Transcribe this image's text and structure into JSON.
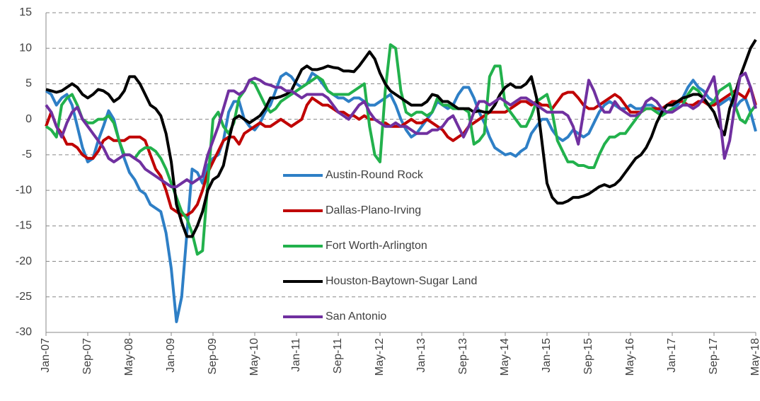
{
  "chart_data": {
    "type": "line",
    "categories": [
      "Jan-07",
      null,
      null,
      null,
      null,
      null,
      null,
      null,
      "Sep-07",
      null,
      null,
      null,
      null,
      null,
      null,
      null,
      "May-08",
      null,
      null,
      null,
      null,
      null,
      null,
      null,
      "Jan-09",
      null,
      null,
      null,
      null,
      null,
      null,
      null,
      "Sep-09",
      null,
      null,
      null,
      null,
      null,
      null,
      null,
      "May-10",
      null,
      null,
      null,
      null,
      null,
      null,
      null,
      "Jan-11",
      null,
      null,
      null,
      null,
      null,
      null,
      null,
      "Sep-11",
      null,
      null,
      null,
      null,
      null,
      null,
      null,
      "May-12",
      null,
      null,
      null,
      null,
      null,
      null,
      null,
      "Jan-13",
      null,
      null,
      null,
      null,
      null,
      null,
      null,
      "Sep-13",
      null,
      null,
      null,
      null,
      null,
      null,
      null,
      "May-14",
      null,
      null,
      null,
      null,
      null,
      null,
      null,
      "Jan-15",
      null,
      null,
      null,
      null,
      null,
      null,
      null,
      "Sep-15",
      null,
      null,
      null,
      null,
      null,
      null,
      null,
      "May-16",
      null,
      null,
      null,
      null,
      null,
      null,
      null,
      "Jan-17",
      null,
      null,
      null,
      null,
      null,
      null,
      null,
      "Sep-17",
      null,
      null,
      null,
      null,
      null,
      null,
      null,
      "May-18"
    ],
    "series": [
      {
        "name": "Austin-Round Rock",
        "color": "#2e7fc6",
        "values": [
          4,
          3.5,
          2,
          3,
          3.5,
          2,
          -1,
          -4,
          -6,
          -5.5,
          -3,
          -1,
          1.2,
          0,
          -3,
          -5.5,
          -7.5,
          -8.5,
          -10,
          -10.5,
          -12,
          -12.5,
          -13,
          -16,
          -21,
          -28.5,
          -25,
          -16,
          -7,
          -7.5,
          -9,
          -6.5,
          -5.5,
          -5,
          -3,
          1,
          2.5,
          2.5,
          0,
          -1,
          -1.5,
          -0.5,
          1,
          2,
          4,
          6,
          6.5,
          6,
          5,
          4.5,
          5,
          6.5,
          6,
          5,
          4,
          3.5,
          3,
          3,
          2.5,
          3,
          3,
          2.5,
          2,
          2,
          2.5,
          3,
          3.5,
          2,
          0,
          -1.5,
          -2.5,
          -2,
          -1,
          0,
          1,
          2.5,
          2,
          1.5,
          2,
          3.5,
          4.5,
          4.5,
          3,
          1,
          -0.5,
          -2.5,
          -4,
          -4.5,
          -5,
          -4.8,
          -5.2,
          -4.5,
          -4,
          -2,
          -1,
          0,
          0,
          -1.5,
          -2.5,
          -3,
          -2.5,
          -1.5,
          -2,
          -2.5,
          -2,
          -0.5,
          1,
          2,
          2.5,
          2,
          1.5,
          1.5,
          2,
          1.5,
          1.5,
          2,
          2,
          1.5,
          1,
          1,
          1.5,
          2,
          3,
          4.5,
          5.5,
          4.5,
          4,
          3,
          2.5,
          2,
          2.5,
          3,
          1.5,
          2.5,
          3,
          1,
          -1.7
        ]
      },
      {
        "name": "Dallas-Plano-Irving",
        "color": "#c00000",
        "values": [
          -1,
          1,
          -1,
          -2,
          -3.5,
          -3.5,
          -4,
          -5,
          -5.5,
          -5.5,
          -4.5,
          -3,
          -2.5,
          -3,
          -3,
          -3,
          -2.5,
          -2.5,
          -2.5,
          -3,
          -5,
          -7,
          -8,
          -10,
          -12.5,
          -13,
          -13.5,
          -13.5,
          -13,
          -12,
          -10,
          -7.5,
          -6,
          -4.5,
          -3,
          -2.5,
          -2.5,
          -3.5,
          -2,
          -1.5,
          -1,
          -0.5,
          -1,
          -1,
          -0.5,
          0,
          -0.5,
          -1,
          -0.5,
          0,
          2,
          3,
          2.5,
          2,
          2,
          1.5,
          1,
          1,
          0.5,
          0.5,
          0,
          0.5,
          0,
          0,
          -0.5,
          -0.5,
          -1,
          -1,
          -1,
          -0.5,
          0,
          -0.5,
          -0.5,
          0,
          -0.5,
          -1,
          -1.5,
          -2.5,
          -3,
          -2.5,
          -2,
          -1,
          -0.5,
          0,
          0.5,
          1,
          1,
          1,
          1,
          1.5,
          2,
          2.5,
          2.5,
          2,
          2.5,
          2,
          2,
          1.5,
          2.5,
          3.5,
          3.8,
          3.8,
          3,
          2,
          1.5,
          1.5,
          2,
          2.5,
          3,
          3.5,
          3,
          2,
          1,
          1,
          1,
          1.5,
          1.5,
          1.5,
          1.5,
          2,
          2.5,
          2.5,
          2.5,
          2,
          2,
          2.5,
          2.5,
          2,
          2,
          2.5,
          3,
          3.5,
          4,
          3.5,
          3,
          4.5,
          2
        ]
      },
      {
        "name": "Fort Worth-Arlington",
        "color": "#22b14c",
        "values": [
          -1,
          -1.5,
          -2.5,
          2,
          3,
          3.5,
          2,
          0,
          -0.5,
          -0.5,
          0,
          0,
          0.5,
          -0.5,
          -3,
          -5,
          -5,
          -5.5,
          -4.5,
          -4,
          -4,
          -4.5,
          -5.5,
          -7,
          -9,
          -11,
          -13,
          -14,
          -16,
          -19,
          -18.5,
          -9,
          0,
          1,
          -1,
          -2,
          -0.5,
          3,
          4,
          5.5,
          5,
          3.5,
          2,
          1,
          1.5,
          2.5,
          3,
          3.5,
          4,
          4.5,
          5,
          5.5,
          6,
          5.5,
          4,
          3.5,
          3.5,
          3.5,
          3.5,
          4,
          4.5,
          5,
          -1,
          -5,
          -6,
          4,
          10.5,
          10,
          4,
          1,
          0.5,
          1,
          1,
          0.5,
          1,
          3,
          2,
          2,
          1.5,
          1.5,
          1.5,
          1,
          -3.5,
          -3,
          -2,
          6,
          7.5,
          7.5,
          2,
          1,
          0,
          -1,
          -1,
          0.5,
          2.5,
          3,
          3.5,
          1,
          -3,
          -4.5,
          -6,
          -6,
          -6.5,
          -6.5,
          -6.8,
          -6.8,
          -5,
          -3.5,
          -2.5,
          -2.5,
          -2,
          -2,
          -1,
          0,
          1,
          1.5,
          1.5,
          1,
          0.5,
          1,
          1.5,
          1.5,
          2,
          3.5,
          4.5,
          4,
          3,
          2,
          2.5,
          4,
          4.5,
          5,
          2,
          0,
          -0.5,
          1,
          2
        ]
      },
      {
        "name": "Houston-Baytown-Sugar Land",
        "color": "#000000",
        "values": [
          4.2,
          4,
          3.8,
          4,
          4.5,
          5,
          4.5,
          3.5,
          3,
          3.5,
          4.2,
          4,
          3.5,
          2.5,
          3,
          4,
          6,
          6,
          5,
          3.5,
          2,
          1.5,
          0.5,
          -2,
          -6,
          -12,
          -14.5,
          -16.5,
          -16.5,
          -15,
          -13,
          -10,
          -8.5,
          -8,
          -6.5,
          -3,
          0,
          0.5,
          0,
          -0.5,
          0,
          0.5,
          1.5,
          3,
          3,
          3.2,
          3.5,
          4,
          5.5,
          7,
          7.5,
          7,
          7,
          7.2,
          7.5,
          7.3,
          7.2,
          6.8,
          6.8,
          6.7,
          7.5,
          8.5,
          9.5,
          8.5,
          6.5,
          5,
          4,
          3.5,
          3,
          2.5,
          2,
          2,
          2,
          2.5,
          3.5,
          3.3,
          2.5,
          2.5,
          2,
          1.5,
          1.5,
          1.5,
          1,
          1.2,
          1,
          1,
          2,
          3.5,
          4.5,
          5,
          4.5,
          4.5,
          5,
          6,
          3,
          -3,
          -9,
          -11,
          -11.8,
          -11.8,
          -11.5,
          -11,
          -11,
          -10.8,
          -10.5,
          -10,
          -9.5,
          -9.2,
          -9.5,
          -9.2,
          -8.5,
          -7.5,
          -6.5,
          -5.5,
          -5,
          -4,
          -2.5,
          -0.5,
          1,
          2,
          2,
          2.5,
          3,
          3.2,
          3.5,
          3.5,
          3,
          2,
          1,
          -1,
          -2.2,
          1.5,
          3.5,
          6,
          8,
          10,
          11.2
        ]
      },
      {
        "name": "San Antonio",
        "color": "#7030a0",
        "values": [
          2,
          1,
          -1,
          -2.5,
          -0.5,
          1,
          1.7,
          0,
          -1,
          -2,
          -3,
          -4,
          -5.5,
          -6,
          -5.5,
          -5,
          -5,
          -5.5,
          -6,
          -7,
          -7.5,
          -8,
          -8.5,
          -9,
          -9.5,
          -9.5,
          -9,
          -8.5,
          -9,
          -8.5,
          -8,
          -5,
          -3,
          -1,
          1.5,
          4,
          4,
          3.5,
          4,
          5.5,
          5.8,
          5.5,
          5,
          4.8,
          4.5,
          4.5,
          4,
          4,
          3.5,
          3,
          3.5,
          3.5,
          3.5,
          3.5,
          3,
          2,
          1,
          0.5,
          0,
          1,
          2,
          2.5,
          1,
          0,
          -0.5,
          -1,
          -1,
          -0.5,
          -1,
          -1,
          -1.5,
          -2,
          -2,
          -2,
          -1.5,
          -1.5,
          -1,
          0,
          0.5,
          -1,
          -2.5,
          -1,
          1,
          2.5,
          2.5,
          2,
          2.5,
          3,
          2.5,
          2,
          2.5,
          3,
          3,
          2.5,
          2,
          1.5,
          1,
          1,
          1,
          1,
          0.5,
          -1,
          -3.5,
          1,
          5.5,
          4,
          2,
          1,
          1,
          2.5,
          1.5,
          1,
          0.5,
          0.5,
          1,
          2.5,
          3,
          2.5,
          1.5,
          1,
          1,
          1.5,
          2,
          2,
          1.5,
          2,
          3,
          4.5,
          6,
          1,
          -5.5,
          -3,
          2,
          6,
          6.5,
          4.5,
          1.5
        ]
      }
    ],
    "ylim": [
      -30,
      15
    ],
    "yticks": [
      -30,
      -25,
      -20,
      -15,
      -10,
      -5,
      0,
      5,
      10,
      15
    ],
    "grid": true,
    "legend": "center"
  }
}
